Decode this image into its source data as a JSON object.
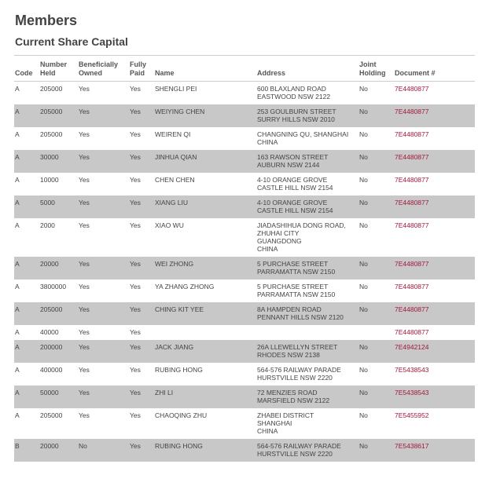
{
  "title": "Members",
  "subtitle": "Current Share Capital",
  "link_color": "#a3173c",
  "headers": {
    "code": "Code",
    "number_held": [
      "Number",
      "Held"
    ],
    "beneficially_owned": [
      "Beneficially",
      "Owned"
    ],
    "fully_paid": [
      "Fully",
      "Paid"
    ],
    "name": "Name",
    "address": "Address",
    "joint_holding": [
      "Joint",
      "Holding"
    ],
    "document": "Document #"
  },
  "rows": [
    {
      "code": "A",
      "number": "205000",
      "beneficial": "Yes",
      "paid": "Yes",
      "name": "SHENGLI PEI",
      "address": [
        "600 BLAXLAND ROAD",
        "EASTWOOD NSW 2122"
      ],
      "joint": "No",
      "doc": "7E4480877"
    },
    {
      "code": "A",
      "number": "205000",
      "beneficial": "Yes",
      "paid": "Yes",
      "name": "WEIYING CHEN",
      "address": [
        "253 GOULBURN STREET",
        "SURRY HILLS NSW 2010"
      ],
      "joint": "No",
      "doc": "7E4480877"
    },
    {
      "code": "A",
      "number": "205000",
      "beneficial": "Yes",
      "paid": "Yes",
      "name": "WEIREN QI",
      "address": [
        "CHANGNING QU, SHANGHAI",
        "CHINA"
      ],
      "joint": "No",
      "doc": "7E4480877"
    },
    {
      "code": "A",
      "number": "30000",
      "beneficial": "Yes",
      "paid": "Yes",
      "name": "JINHUA QIAN",
      "address": [
        "163 RAWSON STREET",
        "AUBURN NSW 2144"
      ],
      "joint": "No",
      "doc": "7E4480877"
    },
    {
      "code": "A",
      "number": "10000",
      "beneficial": "Yes",
      "paid": "Yes",
      "name": "CHEN CHEN",
      "address": [
        "4-10 ORANGE GROVE",
        "CASTLE HILL NSW 2154"
      ],
      "joint": "No",
      "doc": "7E4480877"
    },
    {
      "code": "A",
      "number": "5000",
      "beneficial": "Yes",
      "paid": "Yes",
      "name": "XIANG LIU",
      "address": [
        "4-10 ORANGE GROVE",
        "CASTLE HILL NSW 2154"
      ],
      "joint": "No",
      "doc": "7E4480877"
    },
    {
      "code": "A",
      "number": "2000",
      "beneficial": "Yes",
      "paid": "Yes",
      "name": "XIAO WU",
      "address": [
        "JIADASHIHUA DONG ROAD,",
        "ZHUHAI CITY",
        "GUANGDONG",
        "CHINA"
      ],
      "joint": "No",
      "doc": "7E4480877"
    },
    {
      "code": "A",
      "number": "20000",
      "beneficial": "Yes",
      "paid": "Yes",
      "name": "WEI ZHONG",
      "address": [
        "5 PURCHASE STREET",
        "PARRAMATTA NSW 2150"
      ],
      "joint": "No",
      "doc": "7E4480877"
    },
    {
      "code": "A",
      "number": "3800000",
      "beneficial": "Yes",
      "paid": "Yes",
      "name": "YA ZHANG ZHONG",
      "address": [
        "5 PURCHASE STREET",
        "PARRAMATTA NSW 2150"
      ],
      "joint": "No",
      "doc": "7E4480877"
    },
    {
      "code": "A",
      "number": "205000",
      "beneficial": "Yes",
      "paid": "Yes",
      "name": "CHING KIT YEE",
      "address": [
        "8A HAMPDEN ROAD",
        "PENNANT HILLS NSW 2120"
      ],
      "joint": "No",
      "doc": "7E4480877"
    },
    {
      "code": "A",
      "number": "40000",
      "beneficial": "Yes",
      "paid": "Yes",
      "name": "",
      "address": [],
      "joint": "",
      "doc": "7E4480877"
    },
    {
      "code": "A",
      "number": "200000",
      "beneficial": "Yes",
      "paid": "Yes",
      "name": "JACK JIANG",
      "address": [
        "26A LLEWELLYN STREET",
        "RHODES NSW 2138"
      ],
      "joint": "No",
      "doc": "7E4942124"
    },
    {
      "code": "A",
      "number": "400000",
      "beneficial": "Yes",
      "paid": "Yes",
      "name": "RUBING HONG",
      "address": [
        "564-576 RAILWAY PARADE",
        "HURSTVILLE NSW 2220"
      ],
      "joint": "No",
      "doc": "7E5438543"
    },
    {
      "code": "A",
      "number": "50000",
      "beneficial": "Yes",
      "paid": "Yes",
      "name": "ZHI LI",
      "address": [
        "72 MENZIES ROAD",
        "MARSFIELD NSW 2122"
      ],
      "joint": "No",
      "doc": "7E5438543"
    },
    {
      "code": "A",
      "number": "205000",
      "beneficial": "Yes",
      "paid": "Yes",
      "name": "CHAOQING ZHU",
      "address": [
        "ZHABEI DISTRICT",
        "SHANGHAI",
        "CHINA"
      ],
      "joint": "No",
      "doc": "7E5455952"
    },
    {
      "code": "B",
      "number": "20000",
      "beneficial": "No",
      "paid": "Yes",
      "name": "RUBING HONG",
      "address": [
        "564-576 RAILWAY PARADE",
        "HURSTVILLE NSW 2220"
      ],
      "joint": "No",
      "doc": "7E5438617"
    }
  ]
}
